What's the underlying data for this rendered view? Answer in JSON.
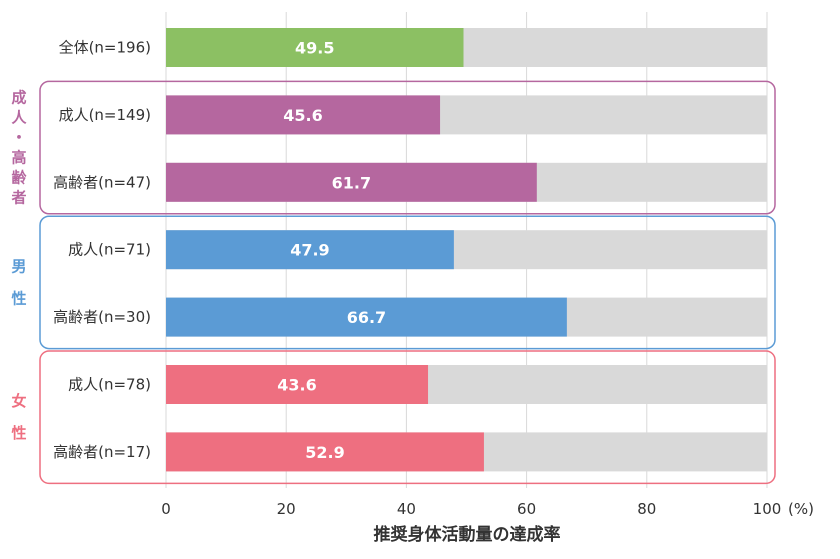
{
  "chart_data": {
    "type": "bar",
    "orientation": "horizontal",
    "stacked_to": 100,
    "categories": [
      "全体(n=196)",
      "成人(n=149)",
      "高齢者(n=47)",
      "成人(n=71)",
      "高齢者(n=30)",
      "成人(n=78)",
      "高齢者(n=17)"
    ],
    "values": [
      49.5,
      45.6,
      61.7,
      47.9,
      66.7,
      43.6,
      52.9
    ],
    "value_labels": [
      "49.5",
      "45.6",
      "61.7",
      "47.9",
      "66.7",
      "43.6",
      "52.9"
    ],
    "bar_colors": [
      "#8cc063",
      "#b5679f",
      "#b5679f",
      "#5b9bd5",
      "#5b9bd5",
      "#ee6f80",
      "#ee6f80"
    ],
    "background_color": "#d9d9d9",
    "groups": [
      {
        "label_chars": [
          "成",
          "人",
          "・",
          "高",
          "齢",
          "者"
        ],
        "color": "#b5679f",
        "rows": [
          1,
          2
        ]
      },
      {
        "label_chars": [
          "男",
          "性"
        ],
        "color": "#5b9bd5",
        "rows": [
          3,
          4
        ]
      },
      {
        "label_chars": [
          "女",
          "性"
        ],
        "color": "#ee6f80",
        "rows": [
          5,
          6
        ]
      }
    ],
    "xlim": [
      0,
      100
    ],
    "xticks": [
      0,
      20,
      40,
      60,
      80,
      100
    ],
    "xtick_labels": [
      "0",
      "20",
      "40",
      "60",
      "80",
      "100"
    ],
    "unit": "(%)",
    "xlabel": "推奨身体活動量の達成率",
    "grid": true
  }
}
